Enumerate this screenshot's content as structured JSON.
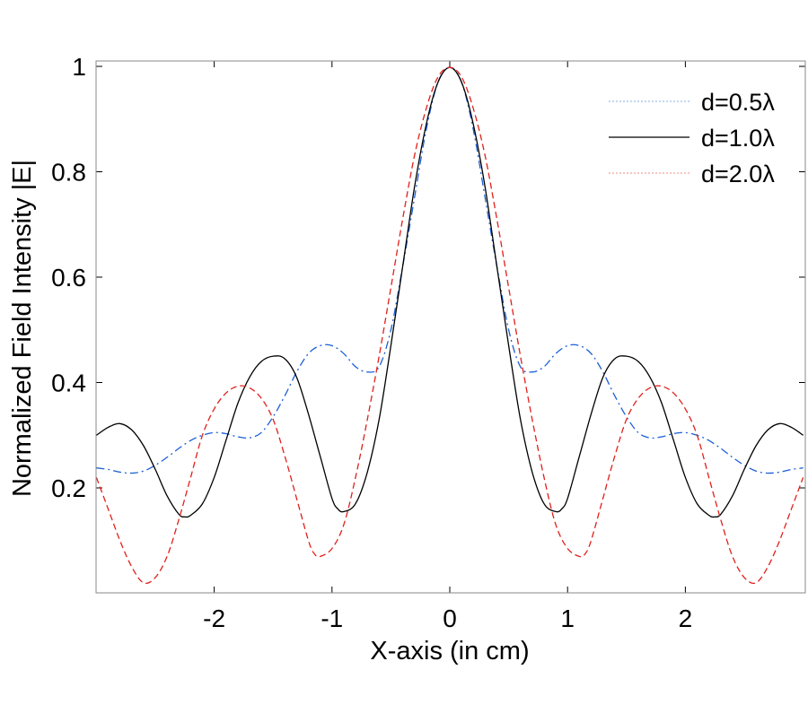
{
  "chart_data": {
    "type": "line",
    "title": "",
    "xlabel": "X-axis (in cm)",
    "ylabel": "Normalized Field Intensity |E|",
    "xlim": [
      -3,
      3
    ],
    "ylim": [
      0,
      1
    ],
    "xticks": [
      -2,
      -1,
      0,
      1,
      2
    ],
    "xtick_labels": [
      "-2",
      "-1",
      "0",
      "1",
      "2"
    ],
    "yticks": [
      0.2,
      0.4,
      0.6,
      0.8,
      1
    ],
    "ytick_labels": [
      "0.2",
      "0.4",
      "0.6",
      "0.8",
      "1"
    ],
    "grid": false,
    "legend_position": "top-right",
    "series": [
      {
        "name": "d=0.5λ",
        "color": "#1a5fd6",
        "style": "dash-dot",
        "x": [
          0,
          0.1,
          0.2,
          0.3,
          0.4,
          0.5,
          0.6,
          0.7,
          0.8,
          0.9,
          1.0,
          1.1,
          1.2,
          1.3,
          1.4,
          1.5,
          1.6,
          1.7,
          1.8,
          1.9,
          2.0,
          2.1,
          2.2,
          2.3,
          2.4,
          2.5,
          2.6,
          2.7,
          2.8,
          2.9,
          3.0
        ],
        "values": [
          0.998,
          0.97,
          0.88,
          0.75,
          0.62,
          0.5,
          0.43,
          0.42,
          0.43,
          0.455,
          0.47,
          0.47,
          0.455,
          0.42,
          0.375,
          0.335,
          0.305,
          0.295,
          0.297,
          0.303,
          0.305,
          0.3,
          0.29,
          0.275,
          0.258,
          0.243,
          0.232,
          0.228,
          0.23,
          0.235,
          0.238
        ]
      },
      {
        "name": "d=1.0λ",
        "color": "#000000",
        "style": "solid",
        "x": [
          0,
          0.1,
          0.2,
          0.3,
          0.4,
          0.5,
          0.6,
          0.7,
          0.8,
          0.9,
          0.95,
          1.0,
          1.1,
          1.2,
          1.3,
          1.4,
          1.5,
          1.6,
          1.7,
          1.8,
          1.9,
          2.0,
          2.1,
          2.2,
          2.25,
          2.3,
          2.4,
          2.5,
          2.6,
          2.7,
          2.8,
          2.9,
          3.0
        ],
        "values": [
          0.998,
          0.97,
          0.89,
          0.77,
          0.62,
          0.47,
          0.33,
          0.23,
          0.17,
          0.155,
          0.16,
          0.18,
          0.26,
          0.34,
          0.41,
          0.445,
          0.45,
          0.44,
          0.41,
          0.36,
          0.29,
          0.22,
          0.17,
          0.148,
          0.145,
          0.15,
          0.185,
          0.235,
          0.28,
          0.31,
          0.322,
          0.315,
          0.3
        ]
      },
      {
        "name": "d=2.0λ",
        "color": "#e0201b",
        "style": "dashed",
        "x": [
          0,
          0.1,
          0.2,
          0.3,
          0.4,
          0.5,
          0.6,
          0.7,
          0.8,
          0.9,
          1.0,
          1.1,
          1.15,
          1.2,
          1.3,
          1.4,
          1.5,
          1.6,
          1.7,
          1.8,
          1.9,
          2.0,
          2.1,
          2.2,
          2.3,
          2.4,
          2.5,
          2.6,
          2.7,
          2.8,
          2.9,
          3.0
        ],
        "values": [
          0.998,
          0.98,
          0.92,
          0.83,
          0.71,
          0.58,
          0.45,
          0.33,
          0.22,
          0.13,
          0.085,
          0.07,
          0.075,
          0.1,
          0.18,
          0.26,
          0.33,
          0.37,
          0.39,
          0.393,
          0.38,
          0.35,
          0.3,
          0.22,
          0.14,
          0.07,
          0.03,
          0.02,
          0.05,
          0.1,
          0.16,
          0.22
        ]
      }
    ]
  }
}
